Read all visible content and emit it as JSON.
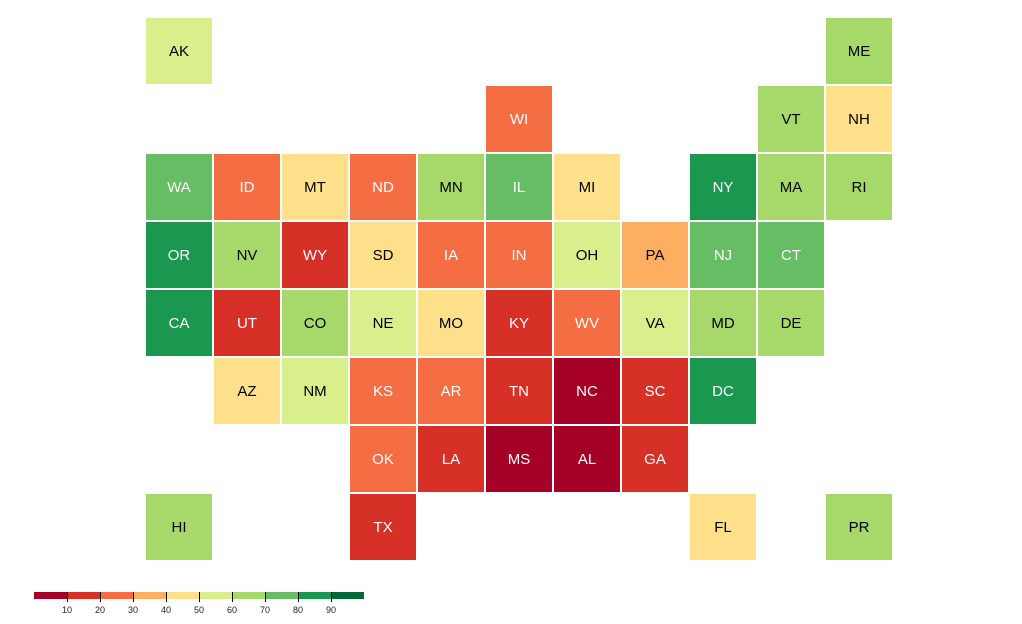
{
  "states": [
    {
      "abbr": "AK",
      "col": 0,
      "row": 0,
      "color": "#d9ef8b"
    },
    {
      "abbr": "ME",
      "col": 10,
      "row": 0,
      "color": "#a6d96a"
    },
    {
      "abbr": "WI",
      "col": 5,
      "row": 1,
      "color": "#f46d43"
    },
    {
      "abbr": "VT",
      "col": 9,
      "row": 1,
      "color": "#a6d96a"
    },
    {
      "abbr": "NH",
      "col": 10,
      "row": 1,
      "color": "#fee08b"
    },
    {
      "abbr": "WA",
      "col": 0,
      "row": 2,
      "color": "#66bd63"
    },
    {
      "abbr": "ID",
      "col": 1,
      "row": 2,
      "color": "#f46d43"
    },
    {
      "abbr": "MT",
      "col": 2,
      "row": 2,
      "color": "#fee08b"
    },
    {
      "abbr": "ND",
      "col": 3,
      "row": 2,
      "color": "#f46d43"
    },
    {
      "abbr": "MN",
      "col": 4,
      "row": 2,
      "color": "#a6d96a"
    },
    {
      "abbr": "IL",
      "col": 5,
      "row": 2,
      "color": "#66bd63"
    },
    {
      "abbr": "MI",
      "col": 6,
      "row": 2,
      "color": "#fee08b"
    },
    {
      "abbr": "NY",
      "col": 8,
      "row": 2,
      "color": "#1a9850"
    },
    {
      "abbr": "MA",
      "col": 9,
      "row": 2,
      "color": "#a6d96a"
    },
    {
      "abbr": "RI",
      "col": 10,
      "row": 2,
      "color": "#a6d96a"
    },
    {
      "abbr": "OR",
      "col": 0,
      "row": 3,
      "color": "#1a9850"
    },
    {
      "abbr": "NV",
      "col": 1,
      "row": 3,
      "color": "#a6d96a"
    },
    {
      "abbr": "WY",
      "col": 2,
      "row": 3,
      "color": "#d73027"
    },
    {
      "abbr": "SD",
      "col": 3,
      "row": 3,
      "color": "#fee08b"
    },
    {
      "abbr": "IA",
      "col": 4,
      "row": 3,
      "color": "#f46d43"
    },
    {
      "abbr": "IN",
      "col": 5,
      "row": 3,
      "color": "#f46d43"
    },
    {
      "abbr": "OH",
      "col": 6,
      "row": 3,
      "color": "#d9ef8b"
    },
    {
      "abbr": "PA",
      "col": 7,
      "row": 3,
      "color": "#fdae61"
    },
    {
      "abbr": "NJ",
      "col": 8,
      "row": 3,
      "color": "#66bd63"
    },
    {
      "abbr": "CT",
      "col": 9,
      "row": 3,
      "color": "#66bd63"
    },
    {
      "abbr": "CA",
      "col": 0,
      "row": 4,
      "color": "#1a9850"
    },
    {
      "abbr": "UT",
      "col": 1,
      "row": 4,
      "color": "#d73027"
    },
    {
      "abbr": "CO",
      "col": 2,
      "row": 4,
      "color": "#a6d96a"
    },
    {
      "abbr": "NE",
      "col": 3,
      "row": 4,
      "color": "#d9ef8b"
    },
    {
      "abbr": "MO",
      "col": 4,
      "row": 4,
      "color": "#fee08b"
    },
    {
      "abbr": "KY",
      "col": 5,
      "row": 4,
      "color": "#d73027"
    },
    {
      "abbr": "WV",
      "col": 6,
      "row": 4,
      "color": "#f46d43"
    },
    {
      "abbr": "VA",
      "col": 7,
      "row": 4,
      "color": "#d9ef8b"
    },
    {
      "abbr": "MD",
      "col": 8,
      "row": 4,
      "color": "#a6d96a"
    },
    {
      "abbr": "DE",
      "col": 9,
      "row": 4,
      "color": "#a6d96a"
    },
    {
      "abbr": "AZ",
      "col": 1,
      "row": 5,
      "color": "#fee08b"
    },
    {
      "abbr": "NM",
      "col": 2,
      "row": 5,
      "color": "#d9ef8b"
    },
    {
      "abbr": "KS",
      "col": 3,
      "row": 5,
      "color": "#f46d43"
    },
    {
      "abbr": "AR",
      "col": 4,
      "row": 5,
      "color": "#f46d43"
    },
    {
      "abbr": "TN",
      "col": 5,
      "row": 5,
      "color": "#d73027"
    },
    {
      "abbr": "NC",
      "col": 6,
      "row": 5,
      "color": "#a50026"
    },
    {
      "abbr": "SC",
      "col": 7,
      "row": 5,
      "color": "#d73027"
    },
    {
      "abbr": "DC",
      "col": 8,
      "row": 5,
      "color": "#1a9850"
    },
    {
      "abbr": "OK",
      "col": 3,
      "row": 6,
      "color": "#f46d43"
    },
    {
      "abbr": "LA",
      "col": 4,
      "row": 6,
      "color": "#d73027"
    },
    {
      "abbr": "MS",
      "col": 5,
      "row": 6,
      "color": "#a50026"
    },
    {
      "abbr": "AL",
      "col": 6,
      "row": 6,
      "color": "#a50026"
    },
    {
      "abbr": "GA",
      "col": 7,
      "row": 6,
      "color": "#d73027"
    },
    {
      "abbr": "HI",
      "col": 0,
      "row": 7,
      "color": "#a6d96a"
    },
    {
      "abbr": "TX",
      "col": 3,
      "row": 7,
      "color": "#d73027"
    },
    {
      "abbr": "FL",
      "col": 8,
      "row": 7,
      "color": "#fee08b"
    },
    {
      "abbr": "PR",
      "col": 10,
      "row": 7,
      "color": "#a6d96a"
    }
  ],
  "legend": {
    "colors": [
      "#a50026",
      "#d73027",
      "#f46d43",
      "#fdae61",
      "#fee08b",
      "#d9ef8b",
      "#a6d96a",
      "#66bd63",
      "#1a9850",
      "#006837"
    ],
    "ticks": [
      "10",
      "20",
      "30",
      "40",
      "50",
      "60",
      "70",
      "80",
      "90"
    ]
  },
  "text_colors": {
    "dark": "#000000",
    "light": "#ffffff"
  }
}
